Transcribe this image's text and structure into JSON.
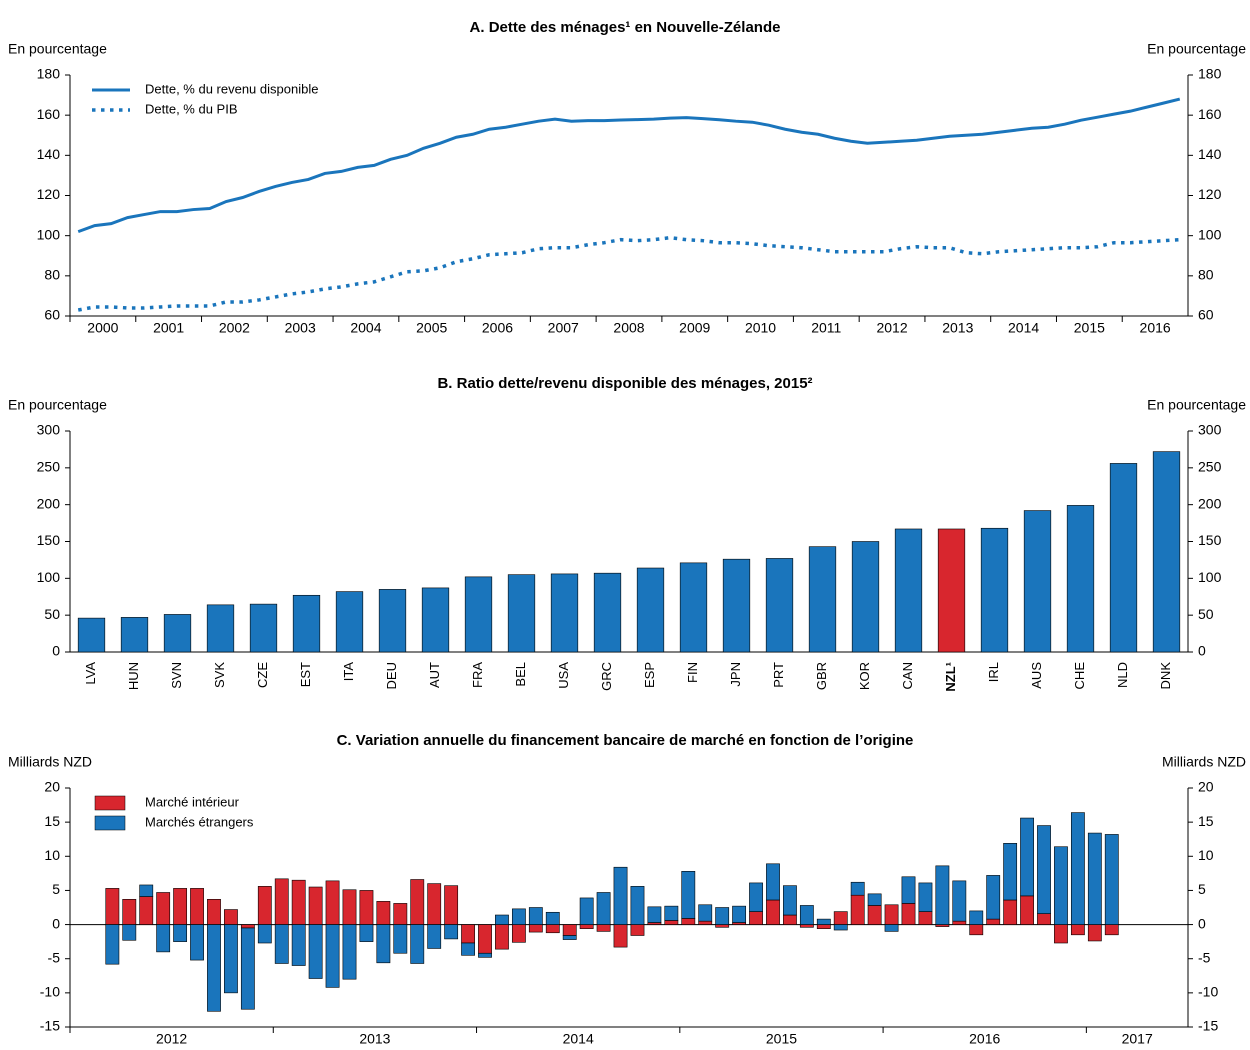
{
  "chart_data": [
    {
      "type": "line",
      "title": "A. Dette des ménages¹ en Nouvelle-Zélande",
      "y_label": "En pourcentage",
      "y2_label": "En pourcentage",
      "categories": [
        "2000",
        null,
        null,
        null,
        "2001",
        null,
        null,
        null,
        "2002",
        null,
        null,
        null,
        "2003",
        null,
        null,
        null,
        "2004",
        null,
        null,
        null,
        "2005",
        null,
        null,
        null,
        "2006",
        null,
        null,
        null,
        "2007",
        null,
        null,
        null,
        "2008",
        null,
        null,
        null,
        "2009",
        null,
        null,
        null,
        "2010",
        null,
        null,
        null,
        "2011",
        null,
        null,
        null,
        "2012",
        null,
        null,
        null,
        "2013",
        null,
        null,
        null,
        "2014",
        null,
        null,
        null,
        "2015",
        null,
        null,
        null,
        "2016",
        null,
        null,
        null
      ],
      "series": [
        {
          "name": "Dette, % du revenu disponible",
          "color": "#1a75bc",
          "line_style": "solid",
          "values": [
            102,
            105,
            106,
            109,
            110.5,
            112,
            112,
            113,
            113.5,
            117,
            119,
            122,
            124.5,
            126.5,
            128,
            131,
            132,
            134,
            135,
            138,
            140,
            143.5,
            146,
            149,
            150.5,
            153,
            154,
            155.5,
            157,
            158,
            157,
            157.3,
            157.3,
            157.6,
            157.8,
            158,
            158.5,
            158.8,
            158.3,
            157.7,
            157,
            156.5,
            155,
            153,
            151.5,
            150.5,
            148.5,
            147,
            146,
            146.5,
            147,
            147.5,
            148.5,
            149.5,
            150,
            150.5,
            151.5,
            152.5,
            153.5,
            154,
            155.5,
            157.5,
            159,
            160.5,
            162,
            164,
            166,
            168
          ]
        },
        {
          "name": "Dette, % du PIB",
          "color": "#1a75bc",
          "line_style": "dotted",
          "values": [
            63,
            64.5,
            64.5,
            64,
            64,
            64.5,
            65,
            65,
            65,
            67,
            67,
            68,
            69.5,
            71,
            72,
            73.5,
            74.5,
            76,
            77,
            79.5,
            82,
            82.5,
            84,
            87,
            88.5,
            90.5,
            91,
            91.5,
            93.5,
            94,
            94,
            95.5,
            96.5,
            98,
            97.5,
            98,
            99,
            98,
            97.5,
            96.5,
            96.5,
            96,
            95,
            94.5,
            94,
            93,
            92,
            92,
            92,
            92,
            93.5,
            94.5,
            94,
            94,
            91.5,
            91,
            92,
            92.5,
            93,
            93.5,
            94,
            94,
            94.5,
            96.5,
            96.5,
            97,
            97.5,
            98
          ]
        }
      ],
      "ylim": [
        60,
        180
      ],
      "yticks": [
        60,
        80,
        100,
        120,
        140,
        160,
        180
      ],
      "y2lim": [
        60,
        180
      ],
      "y2ticks": [
        60,
        80,
        100,
        120,
        140,
        160,
        180
      ],
      "legend": "top-left",
      "grid": false
    },
    {
      "type": "bar",
      "title": "B. Ratio dette/revenu disponible des ménages, 2015²",
      "y_label": "En pourcentage",
      "y2_label": "En pourcentage",
      "categories": [
        "LVA",
        "HUN",
        "SVN",
        "SVK",
        "CZE",
        "EST",
        "ITA",
        "DEU",
        "AUT",
        "FRA",
        "BEL",
        "USA",
        "GRC",
        "ESP",
        "FIN",
        "JPN",
        "PRT",
        "GBR",
        "KOR",
        "CAN",
        "NZL¹",
        "IRL",
        "AUS",
        "CHE",
        "NLD",
        "DNK"
      ],
      "values": [
        46,
        47,
        51,
        64,
        65,
        77,
        82,
        85,
        87,
        102,
        105,
        106,
        107,
        114,
        121,
        126,
        127,
        143,
        150,
        167,
        167,
        168,
        192,
        199,
        256,
        272
      ],
      "color": "#1a75bc",
      "colors": [
        "#1a75bc",
        "#1a75bc",
        "#1a75bc",
        "#1a75bc",
        "#1a75bc",
        "#1a75bc",
        "#1a75bc",
        "#1a75bc",
        "#1a75bc",
        "#1a75bc",
        "#1a75bc",
        "#1a75bc",
        "#1a75bc",
        "#1a75bc",
        "#1a75bc",
        "#1a75bc",
        "#1a75bc",
        "#1a75bc",
        "#1a75bc",
        "#1a75bc",
        "#d8262e",
        "#1a75bc",
        "#1a75bc",
        "#1a75bc",
        "#1a75bc",
        "#1a75bc"
      ],
      "ylim": [
        0,
        300
      ],
      "yticks": [
        0,
        50,
        100,
        150,
        200,
        250,
        300
      ],
      "y2lim": [
        0,
        300
      ],
      "y2ticks": [
        0,
        50,
        100,
        150,
        200,
        250,
        300
      ],
      "grid": false
    },
    {
      "type": "bar",
      "stacked": true,
      "title": "C. Variation annuelle du financement bancaire de marché en fonction de l’origine",
      "y_label": "Milliards NZD",
      "y2_label": "Milliards NZD",
      "categories": [
        "2012",
        null,
        null,
        null,
        null,
        null,
        null,
        null,
        null,
        null,
        null,
        null,
        "2013",
        null,
        null,
        null,
        null,
        null,
        null,
        null,
        null,
        null,
        null,
        null,
        "2014",
        null,
        null,
        null,
        null,
        null,
        null,
        null,
        null,
        null,
        null,
        null,
        "2015",
        null,
        null,
        null,
        null,
        null,
        null,
        null,
        null,
        null,
        null,
        null,
        "2016",
        null,
        null,
        null,
        null,
        null,
        null,
        null,
        null,
        null,
        null,
        null,
        "2017",
        null,
        null,
        null,
        null,
        null
      ],
      "series": [
        {
          "name": "Marché intérieur",
          "color": "#d8262e",
          "values": [
            null,
            null,
            5.3,
            3.7,
            4.1,
            4.7,
            5.3,
            5.3,
            3.7,
            2.2,
            -0.5,
            5.6,
            6.7,
            6.5,
            5.5,
            6.4,
            5.1,
            5.0,
            3.4,
            3.1,
            6.6,
            6.0,
            5.7,
            -2.7,
            -4.2,
            -3.6,
            -2.6,
            -1.1,
            -1.2,
            -1.6,
            -0.6,
            -1.0,
            -3.3,
            -1.6,
            0.3,
            0.6,
            0.9,
            0.5,
            -0.4,
            0.3,
            1.9,
            3.6,
            1.4,
            -0.4,
            -0.6,
            1.9,
            4.3,
            2.8,
            2.9,
            3.1,
            1.9,
            -0.3,
            0.5,
            -1.5,
            0.8,
            3.6,
            4.2,
            1.6,
            -2.7,
            -1.5,
            -2.4,
            -1.5,
            null,
            null,
            null,
            null
          ]
        },
        {
          "name": "Marchés étrangers",
          "color": "#1a75bc",
          "values": [
            null,
            null,
            -5.8,
            -2.3,
            1.7,
            -4.0,
            -2.5,
            -5.2,
            -12.7,
            -10.0,
            -11.9,
            -2.7,
            -5.7,
            -6.0,
            -7.9,
            -9.2,
            -8.0,
            -2.5,
            -5.6,
            -4.2,
            -5.7,
            -3.5,
            -2.1,
            -1.8,
            -0.6,
            1.4,
            2.3,
            2.5,
            1.8,
            -0.6,
            3.9,
            4.7,
            8.4,
            5.6,
            2.3,
            2.1,
            6.9,
            2.4,
            2.5,
            2.4,
            4.2,
            5.3,
            4.3,
            2.8,
            0.8,
            -0.8,
            1.9,
            1.7,
            -1.0,
            3.9,
            4.2,
            8.6,
            5.9,
            2.0,
            6.4,
            8.3,
            11.4,
            12.9,
            11.4,
            16.4,
            13.4,
            13.2,
            null,
            null,
            null,
            null
          ]
        }
      ],
      "ylim": [
        -15,
        20
      ],
      "yticks": [
        -15,
        -10,
        -5,
        0,
        5,
        10,
        15,
        20
      ],
      "y2lim": [
        -15,
        20
      ],
      "y2ticks": [
        -15,
        -10,
        -5,
        0,
        5,
        10,
        15,
        20
      ],
      "legend": "top-left",
      "grid": false
    }
  ]
}
